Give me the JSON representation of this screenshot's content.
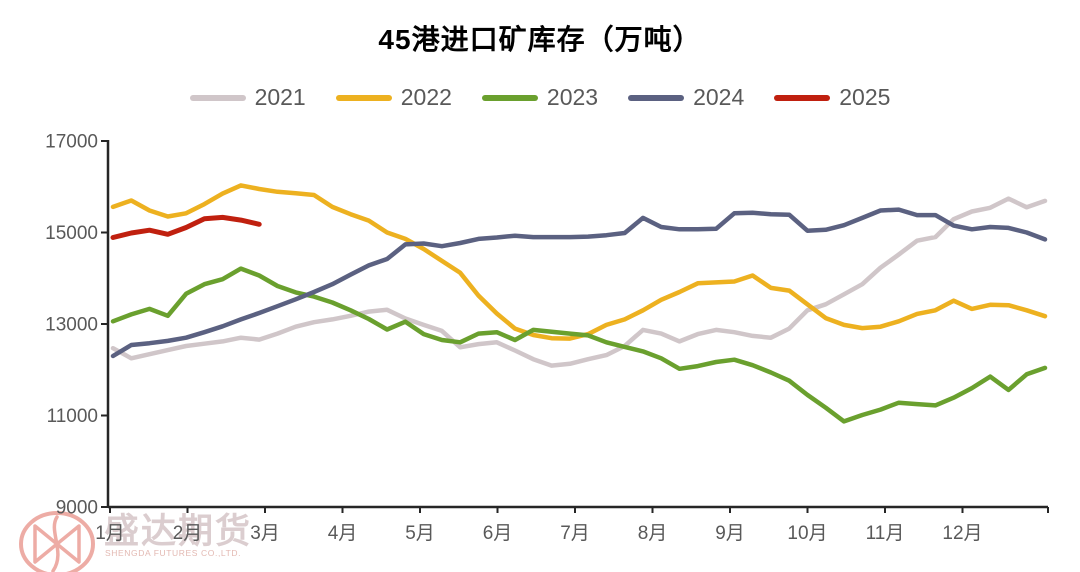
{
  "chart_data": {
    "type": "line",
    "title": "45港进口矿库存（万吨）",
    "ylabel": "",
    "xlabel": "",
    "ylim": [
      9000,
      17000
    ],
    "grid": false,
    "legend_position": "top",
    "y_axis": {
      "ticks": [
        17000,
        15000,
        13000,
        11000,
        9000
      ]
    },
    "x_axis": {
      "months": [
        "1月",
        "2月",
        "3月",
        "4月",
        "5月",
        "6月",
        "7月",
        "8月",
        "9月",
        "10月",
        "11月",
        "12月"
      ]
    },
    "frequency": "weekly",
    "series": [
      {
        "name": "2021",
        "color": "#d0c6c9",
        "values": [
          12470,
          12250,
          12340,
          12430,
          12520,
          12570,
          12620,
          12700,
          12660,
          12790,
          12940,
          13040,
          13100,
          13180,
          13270,
          13310,
          13120,
          12980,
          12850,
          12490,
          12560,
          12600,
          12420,
          12230,
          12090,
          12130,
          12230,
          12320,
          12520,
          12870,
          12790,
          12620,
          12780,
          12870,
          12820,
          12740,
          12700,
          12900,
          13300,
          13430,
          13650,
          13870,
          14230,
          14520,
          14820,
          14900,
          15290,
          15460,
          15540,
          15740,
          15550,
          15690
        ]
      },
      {
        "name": "2022",
        "color": "#edb120",
        "values": [
          15560,
          15700,
          15480,
          15350,
          15420,
          15620,
          15850,
          16030,
          15950,
          15890,
          15860,
          15820,
          15560,
          15400,
          15260,
          15000,
          14860,
          14640,
          14380,
          14120,
          13620,
          13230,
          12900,
          12760,
          12690,
          12680,
          12780,
          12980,
          13100,
          13300,
          13530,
          13700,
          13890,
          13910,
          13930,
          14060,
          13790,
          13730,
          13430,
          13130,
          12980,
          12910,
          12940,
          13060,
          13220,
          13300,
          13510,
          13330,
          13420,
          13410,
          13300,
          13170
        ]
      },
      {
        "name": "2023",
        "color": "#6aa02e",
        "values": [
          13060,
          13210,
          13330,
          13180,
          13660,
          13870,
          13980,
          14210,
          14060,
          13830,
          13690,
          13600,
          13470,
          13300,
          13110,
          12880,
          13050,
          12780,
          12650,
          12600,
          12790,
          12820,
          12650,
          12870,
          12830,
          12790,
          12750,
          12600,
          12500,
          12400,
          12250,
          12020,
          12080,
          12170,
          12220,
          12100,
          11940,
          11760,
          11450,
          11170,
          10870,
          11010,
          11130,
          11280,
          11250,
          11220,
          11390,
          11600,
          11850,
          11560,
          11900,
          12040
        ]
      },
      {
        "name": "2024",
        "color": "#5b6181",
        "values": [
          12300,
          12540,
          12580,
          12630,
          12700,
          12820,
          12950,
          13100,
          13240,
          13390,
          13540,
          13700,
          13870,
          14080,
          14280,
          14420,
          14740,
          14760,
          14700,
          14770,
          14860,
          14890,
          14930,
          14900,
          14900,
          14900,
          14910,
          14940,
          14990,
          15320,
          15120,
          15070,
          15070,
          15080,
          15420,
          15430,
          15400,
          15390,
          15040,
          15060,
          15160,
          15320,
          15480,
          15500,
          15380,
          15380,
          15150,
          15070,
          15120,
          15100,
          15000,
          14850
        ]
      },
      {
        "name": "2025",
        "color": "#c0200f",
        "values": [
          14890,
          14990,
          15050,
          14960,
          15110,
          15300,
          15330,
          15270,
          15180
        ]
      }
    ]
  },
  "watermark": {
    "cn": "盛达期货",
    "en": "SHENGDA FUTURES CO.,LTD."
  },
  "styles": {
    "axis_color": "#262626",
    "label_color": "#595959",
    "title_color": "#000000",
    "watermark_stroke": "#eb9e96"
  }
}
